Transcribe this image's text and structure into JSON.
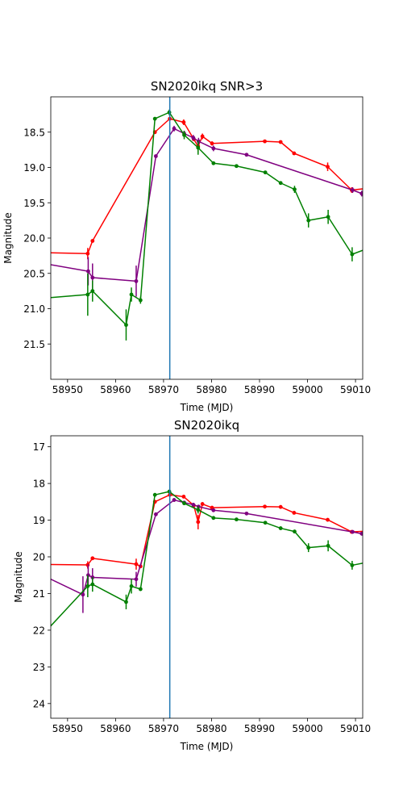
{
  "chart_data": [
    {
      "type": "line",
      "title": "SN2020ikq SNR>3",
      "xlabel": "Time (MJD)",
      "ylabel": "Magnitude",
      "xlim": [
        58946.5,
        59011.5
      ],
      "ylim": [
        22.0,
        18.0
      ],
      "y_inverted": true,
      "xticks": [
        58950,
        58960,
        58970,
        58980,
        58990,
        59000,
        59010
      ],
      "yticks": [
        18.5,
        19.0,
        19.5,
        20.0,
        20.5,
        21.0,
        21.5
      ],
      "ytick_labels": [
        "18.5",
        "19.0",
        "19.5",
        "20.0",
        "20.5",
        "21.0",
        "21.5"
      ],
      "vline_x": 58971.3,
      "series": [
        {
          "color": "#ff0000",
          "x": [
            58940,
            58954.2,
            58955.2,
            58968.2,
            58971.3,
            58974.2,
            58976.3,
            58977.2,
            58978.1,
            58980.1,
            58991.1,
            58994.4,
            58997.2,
            59004.2,
            59009.2,
            59012
          ],
          "y": [
            20.2,
            20.22,
            20.04,
            18.5,
            18.31,
            18.36,
            18.6,
            18.7,
            18.56,
            18.66,
            18.63,
            18.64,
            18.8,
            18.99,
            19.32,
            19.3
          ],
          "err": [
            0,
            0.08,
            0,
            0,
            0,
            0.04,
            0,
            0.08,
            0.04,
            0.03,
            0,
            0,
            0,
            0.06,
            0.04,
            0
          ]
        },
        {
          "color": "#800080",
          "x": [
            58940,
            58954.3,
            58955.2,
            58964.3,
            58968.4,
            58972.2,
            58974.3,
            58976.2,
            58977.3,
            58980.4,
            58987.3,
            59009.4,
            59011.3,
            59012
          ],
          "y": [
            20.3,
            20.47,
            20.56,
            20.61,
            18.84,
            18.45,
            18.52,
            18.58,
            18.63,
            18.73,
            18.82,
            19.32,
            19.37,
            19.38
          ],
          "err": [
            0,
            0.2,
            0.2,
            0.22,
            0,
            0.04,
            0.04,
            0.04,
            0.05,
            0.04,
            0,
            0.04,
            0.04,
            0
          ]
        },
        {
          "color": "#008000",
          "x": [
            58940,
            58954.2,
            58955.2,
            58962.2,
            58963.3,
            58965.2,
            58968.2,
            58971.2,
            58974.3,
            58977.2,
            58980.4,
            58985.2,
            58991.2,
            58994.4,
            58997.3,
            59000.2,
            59004.3,
            59009.3,
            59012
          ],
          "y": [
            20.88,
            20.8,
            20.75,
            21.23,
            20.8,
            20.88,
            18.31,
            18.22,
            18.54,
            18.72,
            18.94,
            18.98,
            19.07,
            19.22,
            19.31,
            19.75,
            19.7,
            20.23,
            20.16
          ],
          "err": [
            0,
            0.3,
            0.15,
            0.22,
            0.1,
            0.05,
            0,
            0.04,
            0.06,
            0.1,
            0,
            0,
            0,
            0,
            0.05,
            0.1,
            0.1,
            0.1,
            0
          ]
        }
      ]
    },
    {
      "type": "line",
      "title": "SN2020ikq",
      "xlabel": "Time (MJD)",
      "ylabel": "Magnitude",
      "xlim": [
        58946.5,
        59011.5
      ],
      "ylim": [
        24.4,
        16.7
      ],
      "y_inverted": true,
      "xticks": [
        58950,
        58960,
        58970,
        58980,
        58990,
        59000,
        59010
      ],
      "yticks": [
        17,
        18,
        19,
        20,
        21,
        22,
        23,
        24
      ],
      "ytick_labels": [
        "17",
        "18",
        "19",
        "20",
        "21",
        "22",
        "23",
        "24"
      ],
      "vline_x": 58971.3,
      "series": [
        {
          "color": "#ff0000",
          "x": [
            58940,
            58954.2,
            58955.2,
            58964.3,
            58965.2,
            58968.2,
            58971.3,
            58974.2,
            58976.3,
            58977.2,
            58978.1,
            58980.1,
            58991.1,
            58994.4,
            58997.2,
            59004.2,
            59009.2,
            59012
          ],
          "y": [
            20.2,
            20.22,
            20.04,
            20.2,
            20.26,
            18.5,
            18.31,
            18.36,
            18.6,
            19.05,
            18.56,
            18.66,
            18.63,
            18.64,
            18.8,
            18.99,
            19.32,
            19.3
          ],
          "err": [
            0,
            0.1,
            0,
            0.15,
            0,
            0,
            0,
            0,
            0,
            0.2,
            0.05,
            0.05,
            0,
            0,
            0,
            0.05,
            0.05,
            0
          ]
        },
        {
          "color": "#800080",
          "x": [
            58940,
            58953.2,
            58954.3,
            58955.2,
            58964.3,
            58968.4,
            58972.2,
            58974.3,
            58976.2,
            58977.3,
            58980.4,
            58987.3,
            59009.4,
            59011.3,
            59012
          ],
          "y": [
            20.2,
            21.03,
            20.5,
            20.56,
            20.61,
            18.84,
            18.45,
            18.52,
            18.58,
            18.63,
            18.73,
            18.82,
            19.32,
            19.37,
            19.38
          ],
          "err": [
            0,
            0.5,
            0.3,
            0.25,
            0.2,
            0,
            0.05,
            0,
            0.05,
            0.05,
            0.05,
            0,
            0.05,
            0.05,
            0
          ]
        },
        {
          "color": "#008000",
          "x": [
            58940,
            58954.2,
            58955.2,
            58962.2,
            58963.3,
            58965.2,
            58968.2,
            58971.2,
            58974.3,
            58977.2,
            58980.4,
            58985.2,
            58991.2,
            58994.4,
            58997.3,
            59000.2,
            59004.3,
            59009.3,
            59012
          ],
          "y": [
            22.8,
            20.8,
            20.75,
            21.23,
            20.8,
            20.88,
            18.31,
            18.22,
            18.54,
            18.72,
            18.94,
            18.98,
            19.07,
            19.22,
            19.31,
            19.75,
            19.7,
            20.23,
            20.16
          ],
          "err": [
            0,
            0.3,
            0.2,
            0.2,
            0.2,
            0.05,
            0,
            0.05,
            0.05,
            0.1,
            0,
            0,
            0,
            0,
            0.05,
            0.12,
            0.15,
            0.12,
            0
          ]
        }
      ]
    }
  ]
}
